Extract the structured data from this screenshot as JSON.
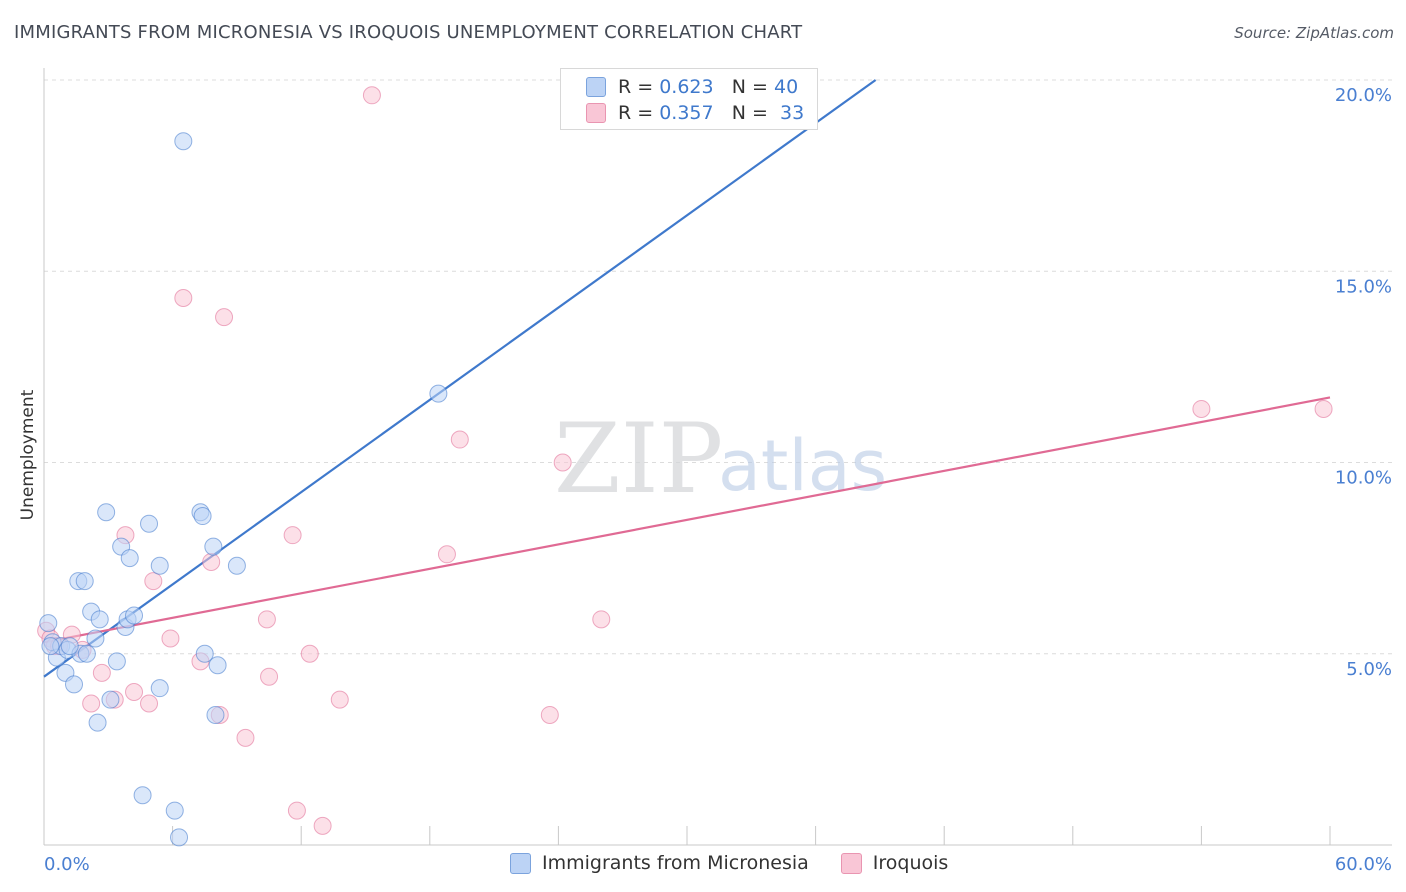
{
  "title": "IMMIGRANTS FROM MICRONESIA VS IROQUOIS UNEMPLOYMENT CORRELATION CHART",
  "source": "Source: ZipAtlas.com",
  "watermark": {
    "zip": "ZIP",
    "atlas": "atlas"
  },
  "legend": {
    "r_label": "R =",
    "n_label": "N =",
    "series": [
      {
        "name": "Immigrants from Micronesia",
        "r": "0.623",
        "n": "40",
        "color": "#3f79cc",
        "fill": "#bcd3f5"
      },
      {
        "name": "Iroquois",
        "r": "0.357",
        "n": "33",
        "color": "#e06a94",
        "fill": "#f9c6d6"
      }
    ]
  },
  "chart_data": {
    "type": "scatter",
    "title": "IMMIGRANTS FROM MICRONESIA VS IROQUOIS UNEMPLOYMENT CORRELATION CHART",
    "xlabel": "",
    "ylabel": "Unemployment",
    "xlim": [
      0,
      60
    ],
    "ylim": [
      0,
      20
    ],
    "x_tick_labels": [
      {
        "value": 0,
        "label": "0.0%"
      },
      {
        "value": 60,
        "label": "60.0%"
      }
    ],
    "y_tick_labels": [
      {
        "value": 5,
        "label": "5.0%"
      },
      {
        "value": 10,
        "label": "10.0%"
      },
      {
        "value": 15,
        "label": "15.0%"
      },
      {
        "value": 20,
        "label": "20.0%"
      }
    ],
    "series": [
      {
        "name": "Immigrants from Micronesia",
        "color": "#3f79cc",
        "fill": "#bcd3f5",
        "trend": {
          "x0": 0,
          "y0": 4.4,
          "x1": 38.8,
          "y1": 20.0
        },
        "points": [
          [
            0.2,
            5.8
          ],
          [
            0.4,
            5.3
          ],
          [
            0.6,
            4.9
          ],
          [
            0.8,
            5.2
          ],
          [
            1.0,
            4.5
          ],
          [
            1.1,
            5.1
          ],
          [
            1.4,
            4.2
          ],
          [
            1.6,
            6.9
          ],
          [
            1.7,
            5.0
          ],
          [
            1.9,
            6.9
          ],
          [
            2.2,
            6.1
          ],
          [
            2.4,
            5.4
          ],
          [
            2.5,
            3.2
          ],
          [
            2.6,
            5.9
          ],
          [
            2.9,
            8.7
          ],
          [
            3.1,
            3.8
          ],
          [
            3.4,
            4.8
          ],
          [
            3.6,
            7.8
          ],
          [
            3.8,
            5.7
          ],
          [
            3.9,
            5.9
          ],
          [
            4.0,
            7.5
          ],
          [
            4.2,
            6.0
          ],
          [
            4.6,
            1.3
          ],
          [
            4.9,
            8.4
          ],
          [
            5.4,
            4.1
          ],
          [
            5.4,
            7.3
          ],
          [
            6.1,
            0.9
          ],
          [
            6.3,
            0.2
          ],
          [
            6.5,
            18.4
          ],
          [
            7.3,
            8.7
          ],
          [
            7.4,
            8.6
          ],
          [
            7.5,
            5.0
          ],
          [
            7.9,
            7.8
          ],
          [
            8.0,
            3.4
          ],
          [
            8.1,
            4.7
          ],
          [
            9.0,
            7.3
          ],
          [
            18.4,
            11.8
          ],
          [
            0.3,
            5.2
          ],
          [
            1.2,
            5.2
          ],
          [
            2.0,
            5.0
          ]
        ]
      },
      {
        "name": "Iroquois",
        "color": "#e06a94",
        "fill": "#f9c6d6",
        "trend": {
          "x0": 0,
          "y0": 5.3,
          "x1": 60,
          "y1": 11.7
        },
        "points": [
          [
            0.1,
            5.6
          ],
          [
            0.3,
            5.4
          ],
          [
            0.5,
            5.2
          ],
          [
            0.7,
            5.2
          ],
          [
            1.3,
            5.5
          ],
          [
            1.8,
            5.1
          ],
          [
            2.2,
            3.7
          ],
          [
            2.7,
            4.5
          ],
          [
            3.3,
            3.8
          ],
          [
            3.8,
            8.1
          ],
          [
            4.2,
            4.0
          ],
          [
            4.9,
            3.7
          ],
          [
            5.1,
            6.9
          ],
          [
            5.9,
            5.4
          ],
          [
            6.5,
            14.3
          ],
          [
            7.3,
            4.8
          ],
          [
            7.8,
            7.4
          ],
          [
            8.2,
            3.4
          ],
          [
            8.4,
            13.8
          ],
          [
            9.4,
            2.8
          ],
          [
            10.4,
            5.9
          ],
          [
            10.5,
            4.4
          ],
          [
            11.6,
            8.1
          ],
          [
            11.8,
            0.9
          ],
          [
            12.4,
            5.0
          ],
          [
            13.0,
            0.5
          ],
          [
            13.8,
            3.8
          ],
          [
            15.3,
            19.6
          ],
          [
            18.8,
            7.6
          ],
          [
            19.4,
            10.6
          ],
          [
            23.6,
            3.4
          ],
          [
            24.2,
            10.0
          ],
          [
            26.0,
            5.9
          ]
        ],
        "points_extra": [
          [
            54.0,
            11.4
          ],
          [
            59.7,
            11.4
          ]
        ]
      }
    ]
  }
}
